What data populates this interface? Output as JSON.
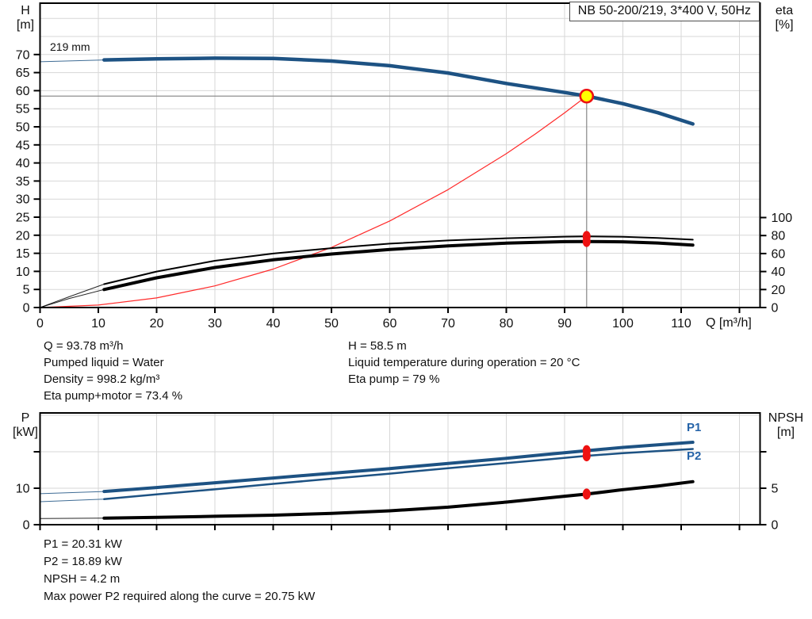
{
  "title_box": "NB 50-200/219, 3*400 V, 50Hz",
  "impeller_label": "219 mm",
  "axis_corner_labels": {
    "h_name": "H",
    "h_unit": "[m]",
    "eta_name": "eta",
    "eta_unit": "[%]",
    "q_label": "Q [m³/h]",
    "p_name": "P",
    "p_unit": "[kW]",
    "npsh_name": "NPSH",
    "npsh_unit": "[m]"
  },
  "curve_labels": {
    "p1": "P1",
    "p2": "P2"
  },
  "operating_point_text": {
    "left": [
      "Q = 93.78 m³/h",
      "Pumped liquid = Water",
      "Density = 998.2 kg/m³",
      "Eta pump+motor = 73.4 %"
    ],
    "right": [
      "H = 58.5 m",
      "Liquid temperature during operation = 20 °C",
      "Eta pump = 79 %"
    ]
  },
  "power_text": [
    "P1 = 20.31 kW",
    "P2 = 18.89 kW",
    "NPSH = 4.2 m",
    "Max power P2 required along the curve = 20.75 kW"
  ],
  "colors": {
    "curve_blue": "#1d5283",
    "curve_black": "#000000",
    "curve_red": "#ff2a2a",
    "dot_red": "#ee1111",
    "duty_yellow": "#ffff00",
    "grid": "#d7d7d7",
    "crosshair": "#8f8f8f",
    "frame": "#000000",
    "label_blue": "#2563a8"
  },
  "chart_data": [
    {
      "type": "line",
      "title": "NB 50-200/219, 3*400 V, 50Hz",
      "xlabel": "Q [m³/h]",
      "ylabel_left": "H [m]",
      "ylabel_right": "eta [%]",
      "x_range": [
        0,
        123.5
      ],
      "x_ticks": [
        0,
        10,
        20,
        30,
        40,
        50,
        60,
        70,
        80,
        90,
        100,
        110,
        120
      ],
      "x_tick_labels": [
        "0",
        "10",
        "20",
        "30",
        "40",
        "50",
        "60",
        "70",
        "80",
        "90",
        "100",
        "110",
        ""
      ],
      "y_left_range": [
        0,
        84.2
      ],
      "y_left_ticks": [
        0,
        5,
        10,
        15,
        20,
        25,
        30,
        35,
        40,
        45,
        50,
        55,
        60,
        65,
        70
      ],
      "y_right_range": [
        0,
        100
      ],
      "y_right_ticks": [
        0,
        20,
        40,
        60,
        80,
        100
      ],
      "grid": true,
      "series": [
        {
          "name": "head-curve-219mm",
          "axis": "left",
          "color": "blue",
          "width": 4.5,
          "thin_until": 11,
          "points": [
            [
              0,
              68.0
            ],
            [
              11,
              68.5
            ],
            [
              20,
              68.8
            ],
            [
              30,
              69.0
            ],
            [
              40,
              68.9
            ],
            [
              50,
              68.2
            ],
            [
              60,
              66.9
            ],
            [
              70,
              64.9
            ],
            [
              80,
              62.0
            ],
            [
              90,
              59.5
            ],
            [
              93.78,
              58.5
            ],
            [
              100,
              56.4
            ],
            [
              106,
              53.9
            ],
            [
              112,
              50.8
            ]
          ]
        },
        {
          "name": "system-curve",
          "axis": "left",
          "color": "red",
          "width": 1.2,
          "points": [
            [
              0,
              0
            ],
            [
              10,
              0.67
            ],
            [
              20,
              2.66
            ],
            [
              30,
              5.99
            ],
            [
              40,
              10.64
            ],
            [
              50,
              16.63
            ],
            [
              60,
              23.95
            ],
            [
              70,
              32.6
            ],
            [
              80,
              42.57
            ],
            [
              85,
              48.05
            ],
            [
              90,
              53.87
            ],
            [
              93.78,
              58.5
            ]
          ]
        },
        {
          "name": "eta-pump-curve",
          "axis": "right",
          "color": "black",
          "width": 2,
          "thin_until": 11,
          "points": [
            [
              0,
              0
            ],
            [
              5,
              12
            ],
            [
              11,
              26
            ],
            [
              20,
              40
            ],
            [
              30,
              52
            ],
            [
              40,
              60
            ],
            [
              50,
              66
            ],
            [
              60,
              71
            ],
            [
              70,
              74.5
            ],
            [
              80,
              77
            ],
            [
              90,
              78.8
            ],
            [
              93.78,
              79
            ],
            [
              100,
              78.6
            ],
            [
              106,
              77.4
            ],
            [
              112,
              75.4
            ]
          ]
        },
        {
          "name": "eta-pump-motor-curve",
          "axis": "right",
          "color": "black",
          "width": 4,
          "thin_until": 11,
          "points": [
            [
              0,
              0
            ],
            [
              5,
              10
            ],
            [
              11,
              20
            ],
            [
              20,
              33
            ],
            [
              30,
              44.5
            ],
            [
              40,
              53
            ],
            [
              50,
              59.5
            ],
            [
              60,
              64.5
            ],
            [
              70,
              68.5
            ],
            [
              80,
              71.5
            ],
            [
              90,
              73.2
            ],
            [
              93.78,
              73.4
            ],
            [
              100,
              73.0
            ],
            [
              106,
              71.7
            ],
            [
              112,
              69.3
            ]
          ]
        }
      ],
      "markers": [
        {
          "name": "duty-point",
          "x": 93.78,
          "y": 58.5,
          "axis": "left",
          "style": "yellow-red"
        },
        {
          "name": "eta-pump-point",
          "x": 93.78,
          "y": 79,
          "axis": "right",
          "style": "red"
        },
        {
          "name": "eta-pump-motor-point",
          "x": 93.78,
          "y": 73.4,
          "axis": "right",
          "style": "red"
        }
      ],
      "crosshair": {
        "q": 93.78,
        "h": 58.5
      }
    },
    {
      "type": "line",
      "xlabel": "",
      "ylabel_left": "P [kW]",
      "ylabel_right": "NPSH [m]",
      "x_range": [
        0,
        123.5
      ],
      "x_ticks": [
        0,
        10,
        20,
        30,
        40,
        50,
        60,
        70,
        80,
        90,
        100,
        110,
        120
      ],
      "x_tick_labels": [
        "",
        "",
        "",
        "",
        "",
        "",
        "",
        "",
        "",
        "",
        "",
        "",
        ""
      ],
      "y_left_range": [
        0,
        30.7
      ],
      "y_left_ticks": [
        0,
        10,
        20
      ],
      "y_left_tick_labels": [
        "0",
        "10",
        ""
      ],
      "y_right_range": [
        0,
        15.3
      ],
      "y_right_ticks": [
        0,
        5,
        10
      ],
      "y_right_tick_labels": [
        "0",
        "5",
        ""
      ],
      "grid": true,
      "series": [
        {
          "name": "p1-curve",
          "axis": "left",
          "color": "blue",
          "width": 4,
          "thin_until": 11,
          "points": [
            [
              0,
              8.5
            ],
            [
              11,
              9.1
            ],
            [
              20,
              10.2
            ],
            [
              30,
              11.5
            ],
            [
              40,
              12.8
            ],
            [
              50,
              14.1
            ],
            [
              60,
              15.4
            ],
            [
              70,
              16.8
            ],
            [
              80,
              18.2
            ],
            [
              87,
              19.3
            ],
            [
              93.78,
              20.31
            ],
            [
              100,
              21.2
            ],
            [
              106,
              21.9
            ],
            [
              112,
              22.6
            ]
          ]
        },
        {
          "name": "p2-curve",
          "axis": "left",
          "color": "blue",
          "width": 2.5,
          "thin_until": 11,
          "points": [
            [
              0,
              6.3
            ],
            [
              11,
              7.0
            ],
            [
              20,
              8.3
            ],
            [
              30,
              9.7
            ],
            [
              40,
              11.2
            ],
            [
              50,
              12.6
            ],
            [
              60,
              14.0
            ],
            [
              70,
              15.5
            ],
            [
              80,
              16.9
            ],
            [
              87,
              17.9
            ],
            [
              93.78,
              18.89
            ],
            [
              100,
              19.6
            ],
            [
              106,
              20.2
            ],
            [
              112,
              20.75
            ]
          ]
        },
        {
          "name": "npsh-curve",
          "axis": "right",
          "color": "black",
          "width": 4,
          "thin_until": 11,
          "points": [
            [
              0,
              0.85
            ],
            [
              11,
              0.9
            ],
            [
              20,
              1.0
            ],
            [
              30,
              1.15
            ],
            [
              40,
              1.3
            ],
            [
              50,
              1.55
            ],
            [
              60,
              1.9
            ],
            [
              70,
              2.4
            ],
            [
              80,
              3.1
            ],
            [
              90,
              3.9
            ],
            [
              93.78,
              4.2
            ],
            [
              100,
              4.8
            ],
            [
              106,
              5.3
            ],
            [
              112,
              5.9
            ]
          ]
        }
      ],
      "markers": [
        {
          "name": "p1-point",
          "x": 93.78,
          "y": 20.31,
          "axis": "left",
          "style": "red"
        },
        {
          "name": "p2-point",
          "x": 93.78,
          "y": 18.89,
          "axis": "left",
          "style": "red"
        },
        {
          "name": "npsh-point",
          "x": 93.78,
          "y": 4.2,
          "axis": "right",
          "style": "red"
        }
      ]
    }
  ]
}
